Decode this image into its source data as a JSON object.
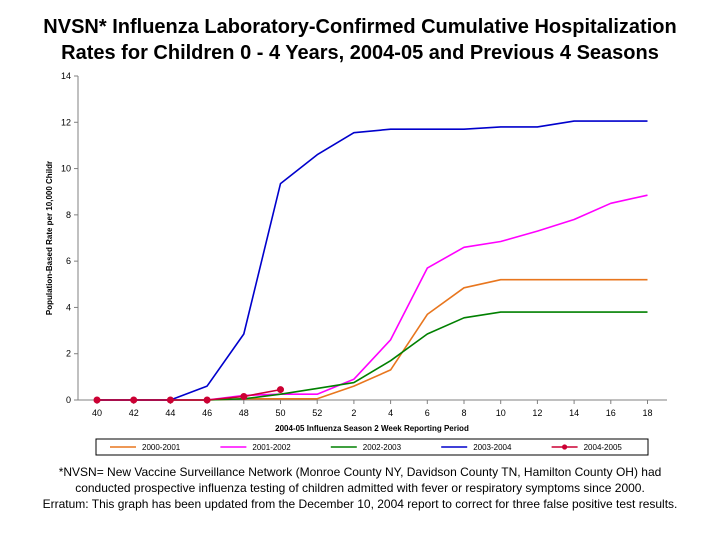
{
  "title_line1": "NVSN* Influenza Laboratory-Confirmed Cumulative Hospitalization",
  "title_line2": "Rates for Children 0 - 4 Years, 2004-05 and Previous 4 Seasons",
  "footnote": {
    "line1": "*NVSN= New Vaccine Surveillance Network (Monroe County NY, Davidson County TN, Hamilton County OH) had",
    "line2": "conducted prospective influenza testing of children admitted with fever or respiratory symptoms since 2000.",
    "line3": "Erratum:  This graph has been updated from the December 10, 2004  report to correct for three false positive test results."
  },
  "chart_data": {
    "type": "line",
    "xlabel": "2004-05 Influenza Season 2 Week Reporting Period",
    "ylabel": "Population-Based Rate per 10,000 Childr",
    "ylim": [
      0,
      14
    ],
    "yticks": [
      0,
      2,
      4,
      6,
      8,
      10,
      12,
      14
    ],
    "categories": [
      "40",
      "42",
      "44",
      "46",
      "48",
      "50",
      "52",
      "2",
      "4",
      "6",
      "8",
      "10",
      "12",
      "14",
      "16",
      "18"
    ],
    "grid": false,
    "legend_position": "bottom",
    "series": [
      {
        "name": "2000-2001",
        "color": "#e8761e",
        "marker": "none",
        "values": [
          0,
          0,
          0,
          0,
          0.05,
          0.05,
          0.05,
          0.6,
          1.3,
          3.7,
          4.85,
          5.2,
          5.2,
          5.2,
          5.2,
          5.2
        ]
      },
      {
        "name": "2001-2002",
        "color": "#ff00ff",
        "marker": "none",
        "values": [
          0,
          0,
          0,
          0,
          0.2,
          0.25,
          0.25,
          0.9,
          2.6,
          5.7,
          6.6,
          6.85,
          7.3,
          7.8,
          8.5,
          8.85
        ]
      },
      {
        "name": "2002-2003",
        "color": "#008000",
        "marker": "none",
        "values": [
          0,
          0,
          0,
          0,
          0.05,
          0.25,
          0.5,
          0.75,
          1.7,
          2.85,
          3.55,
          3.8,
          3.8,
          3.8,
          3.8,
          3.8
        ]
      },
      {
        "name": "2003-2004",
        "color": "#0000cc",
        "marker": "none",
        "values": [
          0,
          0,
          0,
          0.6,
          2.85,
          9.35,
          10.6,
          11.55,
          11.7,
          11.7,
          11.7,
          11.8,
          11.8,
          12.05,
          12.05,
          12.05
        ]
      },
      {
        "name": "2004-2005",
        "color": "#cc0033",
        "marker": "circle",
        "values": [
          0,
          0,
          0,
          0,
          0.15,
          0.45,
          null,
          null,
          null,
          null,
          null,
          null,
          null,
          null,
          null,
          null
        ]
      }
    ]
  }
}
